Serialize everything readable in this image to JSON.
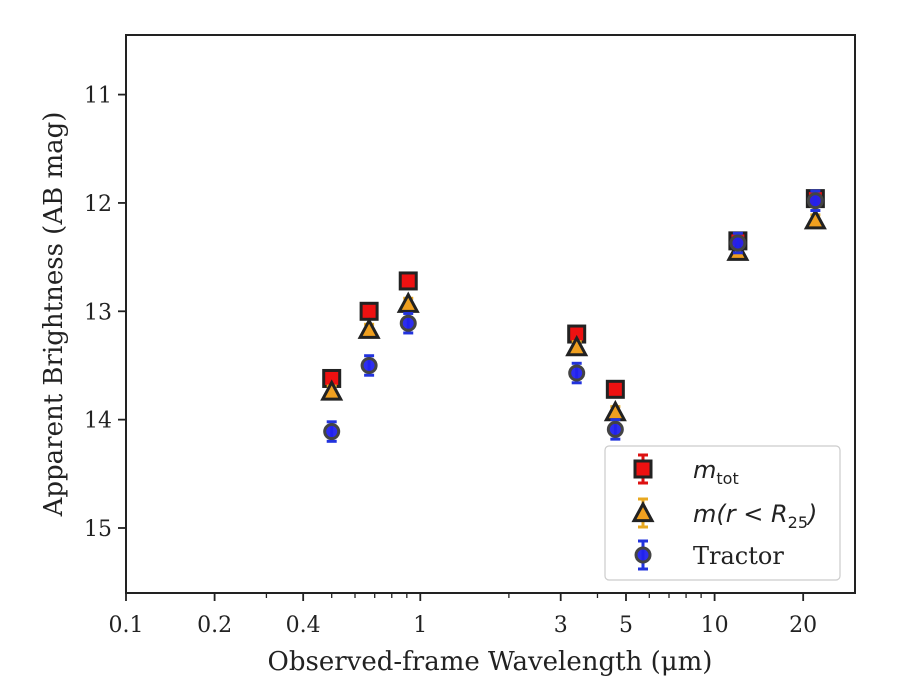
{
  "chart_data": {
    "type": "scatter",
    "xlabel": "Observed-frame Wavelength (μm)",
    "ylabel": "Apparent Brightness (AB mag)",
    "x_scale": "log",
    "y_inverted": true,
    "xlim": [
      0.1,
      30
    ],
    "ylim": [
      15.6,
      10.45
    ],
    "x_ticks": [
      {
        "value": 0.1,
        "label": "0.1"
      },
      {
        "value": 0.2,
        "label": "0.2"
      },
      {
        "value": 0.4,
        "label": "0.4"
      },
      {
        "value": 1,
        "label": "1"
      },
      {
        "value": 3,
        "label": "3"
      },
      {
        "value": 5,
        "label": "5"
      },
      {
        "value": 10,
        "label": "10"
      },
      {
        "value": 20,
        "label": "20"
      }
    ],
    "y_ticks": [
      {
        "value": 11,
        "label": "11"
      },
      {
        "value": 12,
        "label": "12"
      },
      {
        "value": 13,
        "label": "13"
      },
      {
        "value": 14,
        "label": "14"
      },
      {
        "value": 15,
        "label": "15"
      }
    ],
    "grid": false,
    "legend_position": "bottom-right",
    "series": [
      {
        "key": "mtot",
        "label_main": "m",
        "label_sub": "tot",
        "marker": "square",
        "fill": "#ee1111",
        "edge": "#222222",
        "errcolor": "#dd1111",
        "points": [
          {
            "x": 0.5,
            "y": 13.62,
            "err": 0.07
          },
          {
            "x": 0.67,
            "y": 13.0,
            "err": 0.07
          },
          {
            "x": 0.91,
            "y": 12.72,
            "err": 0.07
          },
          {
            "x": 3.4,
            "y": 13.21,
            "err": 0.07
          },
          {
            "x": 4.6,
            "y": 13.72,
            "err": 0.07
          },
          {
            "x": 12.0,
            "y": 12.35,
            "err": 0.07
          },
          {
            "x": 22.0,
            "y": 11.96,
            "err": 0.07
          }
        ]
      },
      {
        "key": "mr25",
        "label_main": "m(r < R",
        "label_sub": "25",
        "label_tail": ")",
        "marker": "triangle",
        "fill": "#f0a020",
        "edge": "#222222",
        "errcolor": "#e8a820",
        "points": [
          {
            "x": 0.5,
            "y": 13.74,
            "err": 0.05
          },
          {
            "x": 0.67,
            "y": 13.17,
            "err": 0.05
          },
          {
            "x": 0.91,
            "y": 12.93,
            "err": 0.05
          },
          {
            "x": 3.4,
            "y": 13.33,
            "err": 0.05
          },
          {
            "x": 4.6,
            "y": 13.93,
            "err": 0.05
          },
          {
            "x": 12.0,
            "y": 12.45,
            "err": 0.05
          },
          {
            "x": 22.0,
            "y": 12.16,
            "err": 0.05
          }
        ]
      },
      {
        "key": "tractor",
        "label_main": "Tractor",
        "marker": "circle",
        "fill": "#2222ee",
        "edge": "#444444",
        "errcolor": "#2233dd",
        "points": [
          {
            "x": 0.5,
            "y": 14.11,
            "err": 0.09
          },
          {
            "x": 0.67,
            "y": 13.5,
            "err": 0.09
          },
          {
            "x": 0.91,
            "y": 13.11,
            "err": 0.09
          },
          {
            "x": 3.4,
            "y": 13.57,
            "err": 0.09
          },
          {
            "x": 4.6,
            "y": 14.09,
            "err": 0.09
          },
          {
            "x": 12.0,
            "y": 12.37,
            "err": 0.09
          },
          {
            "x": 22.0,
            "y": 11.98,
            "err": 0.09
          }
        ]
      }
    ]
  }
}
